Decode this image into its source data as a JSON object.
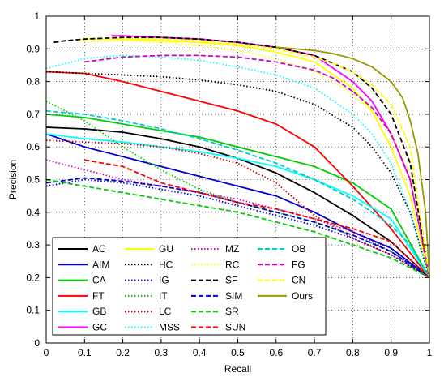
{
  "figure": {
    "background": "#ffffff"
  },
  "chart_data": {
    "type": "line",
    "title": "",
    "xlabel": "Recall",
    "ylabel": "Precision",
    "xlim": [
      0,
      1
    ],
    "ylim": [
      0,
      1
    ],
    "xticks": [
      0,
      0.1,
      0.2,
      0.3,
      0.4,
      0.5,
      0.6,
      0.7,
      0.8,
      0.9,
      1
    ],
    "yticks": [
      0,
      0.1,
      0.2,
      0.3,
      0.4,
      0.5,
      0.6,
      0.7,
      0.8,
      0.9,
      1
    ],
    "xtick_labels": [
      "0",
      "0.1",
      "0.2",
      "0.3",
      "0.4",
      "0.5",
      "0.6",
      "0.7",
      "0.8",
      "0.9",
      "1"
    ],
    "ytick_labels": [
      "0",
      "0.1",
      "0.2",
      "0.3",
      "0.4",
      "0.5",
      "0.6",
      "0.7",
      "0.8",
      "0.9",
      "1"
    ],
    "grid": true,
    "grid_style": "dotted",
    "legend_position": "bottom-left",
    "legend_columns": 4,
    "series": [
      {
        "name": "AC",
        "color": "#000000",
        "dash": "solid",
        "x": [
          0,
          0.1,
          0.2,
          0.3,
          0.4,
          0.5,
          0.6,
          0.7,
          0.8,
          0.9,
          1
        ],
        "y": [
          0.66,
          0.655,
          0.645,
          0.625,
          0.6,
          0.565,
          0.52,
          0.46,
          0.39,
          0.31,
          0.2
        ]
      },
      {
        "name": "AIM",
        "color": "#0000cc",
        "dash": "solid",
        "x": [
          0,
          0.1,
          0.2,
          0.3,
          0.4,
          0.5,
          0.6,
          0.7,
          0.8,
          0.9,
          1
        ],
        "y": [
          0.64,
          0.6,
          0.57,
          0.54,
          0.51,
          0.48,
          0.45,
          0.4,
          0.34,
          0.29,
          0.2
        ]
      },
      {
        "name": "CA",
        "color": "#00cc00",
        "dash": "solid",
        "x": [
          0,
          0.1,
          0.2,
          0.3,
          0.4,
          0.5,
          0.6,
          0.7,
          0.8,
          0.9,
          1
        ],
        "y": [
          0.7,
          0.69,
          0.67,
          0.65,
          0.63,
          0.6,
          0.57,
          0.54,
          0.49,
          0.41,
          0.2
        ]
      },
      {
        "name": "FT",
        "color": "#ff0000",
        "dash": "solid",
        "x": [
          0,
          0.1,
          0.2,
          0.3,
          0.4,
          0.5,
          0.6,
          0.7,
          0.8,
          0.9,
          1
        ],
        "y": [
          0.83,
          0.825,
          0.8,
          0.77,
          0.74,
          0.71,
          0.67,
          0.6,
          0.48,
          0.35,
          0.2
        ]
      },
      {
        "name": "GB",
        "color": "#00ffff",
        "dash": "solid",
        "x": [
          0,
          0.1,
          0.2,
          0.3,
          0.4,
          0.5,
          0.6,
          0.7,
          0.8,
          0.9,
          1
        ],
        "y": [
          0.64,
          0.625,
          0.615,
          0.6,
          0.585,
          0.565,
          0.54,
          0.5,
          0.45,
          0.38,
          0.2
        ]
      },
      {
        "name": "GC",
        "color": "#ff00ff",
        "dash": "solid",
        "x": [
          0.17,
          0.2,
          0.3,
          0.4,
          0.5,
          0.6,
          0.7,
          0.8,
          0.85,
          0.9,
          0.95,
          1
        ],
        "y": [
          0.94,
          0.94,
          0.935,
          0.93,
          0.92,
          0.905,
          0.88,
          0.8,
          0.74,
          0.64,
          0.5,
          0.2
        ]
      },
      {
        "name": "GU",
        "color": "#ffff00",
        "dash": "solid",
        "x": [
          0.08,
          0.1,
          0.2,
          0.3,
          0.4,
          0.5,
          0.6,
          0.7,
          0.8,
          0.85,
          0.9,
          0.95,
          1
        ],
        "y": [
          0.925,
          0.93,
          0.93,
          0.925,
          0.92,
          0.91,
          0.89,
          0.86,
          0.78,
          0.71,
          0.6,
          0.45,
          0.2
        ]
      },
      {
        "name": "HC",
        "color": "#000000",
        "dash": "dotted",
        "x": [
          0,
          0.1,
          0.2,
          0.3,
          0.4,
          0.5,
          0.6,
          0.7,
          0.8,
          0.85,
          0.9,
          0.95,
          1
        ],
        "y": [
          0.83,
          0.825,
          0.82,
          0.815,
          0.805,
          0.79,
          0.77,
          0.73,
          0.66,
          0.6,
          0.52,
          0.4,
          0.2
        ]
      },
      {
        "name": "IG",
        "color": "#0000cc",
        "dash": "dotted",
        "x": [
          0,
          0.1,
          0.2,
          0.3,
          0.4,
          0.5,
          0.6,
          0.7,
          0.8,
          0.9,
          1
        ],
        "y": [
          0.48,
          0.5,
          0.49,
          0.47,
          0.45,
          0.42,
          0.39,
          0.36,
          0.32,
          0.27,
          0.2
        ]
      },
      {
        "name": "IT",
        "color": "#00cc00",
        "dash": "dotted",
        "x": [
          0,
          0.1,
          0.2,
          0.3,
          0.4,
          0.5,
          0.6,
          0.7,
          0.8,
          0.9,
          1
        ],
        "y": [
          0.74,
          0.68,
          0.6,
          0.53,
          0.47,
          0.43,
          0.4,
          0.37,
          0.33,
          0.28,
          0.2
        ]
      },
      {
        "name": "LC",
        "color": "#cc0000",
        "dash": "dotted",
        "x": [
          0,
          0.1,
          0.2,
          0.3,
          0.4,
          0.5,
          0.6,
          0.65,
          0.7,
          0.8,
          0.9,
          1
        ],
        "y": [
          0.62,
          0.615,
          0.61,
          0.6,
          0.58,
          0.55,
          0.49,
          0.44,
          0.39,
          0.32,
          0.27,
          0.2
        ]
      },
      {
        "name": "MSS",
        "color": "#00ffff",
        "dash": "dotted",
        "x": [
          0,
          0.1,
          0.2,
          0.3,
          0.4,
          0.5,
          0.6,
          0.7,
          0.75,
          0.8,
          0.85,
          0.9,
          0.95,
          1
        ],
        "y": [
          0.84,
          0.87,
          0.88,
          0.875,
          0.865,
          0.845,
          0.82,
          0.78,
          0.74,
          0.7,
          0.64,
          0.55,
          0.4,
          0.2
        ]
      },
      {
        "name": "MZ",
        "color": "#cc00cc",
        "dash": "dotted",
        "x": [
          0,
          0.1,
          0.2,
          0.3,
          0.4,
          0.5,
          0.6,
          0.7,
          0.8,
          0.9,
          1
        ],
        "y": [
          0.56,
          0.53,
          0.5,
          0.48,
          0.46,
          0.44,
          0.41,
          0.38,
          0.34,
          0.28,
          0.2
        ]
      },
      {
        "name": "RC",
        "color": "#ffff00",
        "dash": "dotted",
        "x": [
          0.1,
          0.2,
          0.3,
          0.4,
          0.5,
          0.6,
          0.7,
          0.75,
          0.8,
          0.85,
          0.9,
          0.95,
          1
        ],
        "y": [
          0.92,
          0.925,
          0.92,
          0.91,
          0.895,
          0.87,
          0.83,
          0.8,
          0.76,
          0.71,
          0.64,
          0.52,
          0.2
        ]
      },
      {
        "name": "SF",
        "color": "#000000",
        "dash": "dashed",
        "x": [
          0.02,
          0.05,
          0.1,
          0.2,
          0.3,
          0.4,
          0.5,
          0.6,
          0.7,
          0.8,
          0.85,
          0.9,
          0.95,
          1
        ],
        "y": [
          0.92,
          0.925,
          0.93,
          0.935,
          0.935,
          0.93,
          0.92,
          0.905,
          0.88,
          0.83,
          0.78,
          0.7,
          0.55,
          0.2
        ]
      },
      {
        "name": "SIM",
        "color": "#0000cc",
        "dash": "dashed",
        "x": [
          0,
          0.1,
          0.2,
          0.3,
          0.4,
          0.5,
          0.6,
          0.7,
          0.8,
          0.9,
          1
        ],
        "y": [
          0.49,
          0.505,
          0.495,
          0.48,
          0.46,
          0.43,
          0.4,
          0.37,
          0.33,
          0.28,
          0.2
        ]
      },
      {
        "name": "SR",
        "color": "#00cc00",
        "dash": "dashed",
        "x": [
          0,
          0.1,
          0.2,
          0.3,
          0.4,
          0.5,
          0.6,
          0.7,
          0.8,
          0.9,
          1
        ],
        "y": [
          0.5,
          0.48,
          0.46,
          0.44,
          0.42,
          0.4,
          0.37,
          0.34,
          0.3,
          0.26,
          0.2
        ]
      },
      {
        "name": "SUN",
        "color": "#ff0000",
        "dash": "dashed",
        "x": [
          0.1,
          0.2,
          0.3,
          0.4,
          0.5,
          0.6,
          0.7,
          0.8,
          0.9,
          1
        ],
        "y": [
          0.56,
          0.54,
          0.49,
          0.46,
          0.43,
          0.41,
          0.38,
          0.35,
          0.31,
          0.2
        ]
      },
      {
        "name": "OB",
        "color": "#00cccc",
        "dash": "dashed",
        "x": [
          0,
          0.1,
          0.2,
          0.3,
          0.4,
          0.5,
          0.6,
          0.7,
          0.8,
          0.9,
          0.95,
          1
        ],
        "y": [
          0.71,
          0.7,
          0.68,
          0.655,
          0.625,
          0.59,
          0.55,
          0.5,
          0.44,
          0.36,
          0.3,
          0.2
        ]
      },
      {
        "name": "FG",
        "color": "#cc00cc",
        "dash": "dashed",
        "x": [
          0.1,
          0.2,
          0.3,
          0.4,
          0.5,
          0.6,
          0.7,
          0.75,
          0.8,
          0.85,
          0.9,
          0.95,
          1
        ],
        "y": [
          0.86,
          0.875,
          0.88,
          0.88,
          0.875,
          0.86,
          0.835,
          0.81,
          0.77,
          0.72,
          0.64,
          0.5,
          0.2
        ]
      },
      {
        "name": "CN",
        "color": "#ffff00",
        "dash": "dashed",
        "x": [
          0.2,
          0.3,
          0.4,
          0.5,
          0.6,
          0.7,
          0.75,
          0.8,
          0.85,
          0.9,
          0.95,
          1
        ],
        "y": [
          0.93,
          0.93,
          0.925,
          0.915,
          0.9,
          0.875,
          0.855,
          0.83,
          0.79,
          0.73,
          0.6,
          0.2
        ]
      },
      {
        "name": "Ours",
        "color": "#999900",
        "dash": "solid",
        "x": [
          0.6,
          0.7,
          0.75,
          0.8,
          0.85,
          0.9,
          0.93,
          0.95,
          0.97,
          0.99,
          1
        ],
        "y": [
          0.905,
          0.895,
          0.885,
          0.87,
          0.845,
          0.8,
          0.75,
          0.68,
          0.58,
          0.4,
          0.2
        ]
      }
    ]
  }
}
